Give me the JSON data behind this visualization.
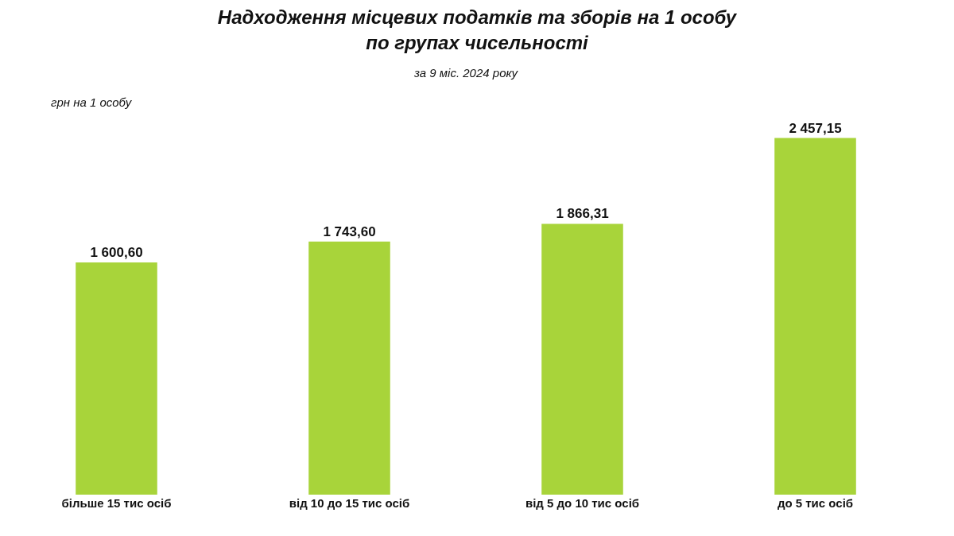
{
  "chart_data": {
    "type": "bar",
    "title": "Надходження місцевих податків та зборів на 1 особу\nпо групах чисельності",
    "subtitle": "за 9 міс. 2024 року",
    "ylabel": "грн на 1 особу",
    "categories": [
      "більше 15 тис осіб",
      "від 10 до 15 тис осіб",
      "від 5 до 10 тис осіб",
      "до 5 тис осіб"
    ],
    "values": [
      1600.6,
      1743.6,
      1866.31,
      2457.15
    ],
    "value_labels": [
      "1 600,60",
      "1 743,60",
      "1 866,31",
      "2 457,15"
    ],
    "color": "#a8d43a"
  }
}
